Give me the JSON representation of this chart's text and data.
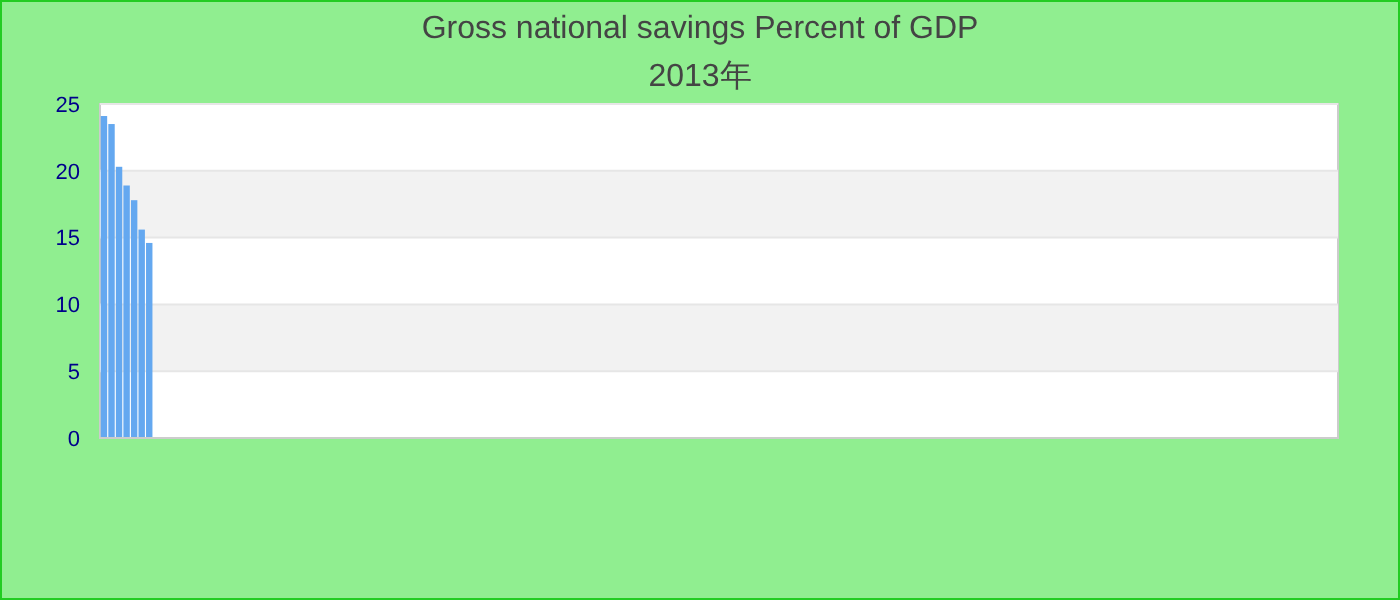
{
  "chart_data": {
    "type": "bar",
    "title": "Gross national savings  Percent of GDP",
    "subtitle": "2013年",
    "categories": [
      null,
      null,
      null,
      null,
      null,
      null,
      null,
      null,
      null,
      null,
      null,
      null,
      null,
      null,
      null,
      null,
      null,
      null,
      null,
      null,
      null,
      null,
      null,
      null,
      null,
      null,
      null,
      null,
      null,
      null,
      null,
      null,
      null,
      null,
      null,
      null,
      null,
      null,
      null,
      null,
      null,
      null,
      null,
      null,
      null,
      null,
      null,
      null,
      null,
      null,
      null,
      null,
      null,
      null,
      null,
      null,
      null,
      null,
      null,
      null,
      null,
      null,
      null,
      null,
      null,
      null,
      null,
      null,
      null,
      null,
      null,
      null,
      null,
      null,
      null,
      null,
      null,
      null,
      null,
      null,
      null,
      null,
      null,
      null,
      null,
      null,
      null,
      null,
      null,
      null,
      null,
      null,
      null,
      null,
      null,
      null,
      null,
      null,
      null,
      null,
      null,
      null,
      null,
      null,
      null,
      null,
      null,
      null,
      null,
      null,
      null,
      null,
      null,
      null,
      null,
      null,
      null,
      null,
      null,
      null,
      null,
      null,
      null,
      null,
      null,
      null,
      null,
      null,
      null,
      null,
      null,
      null,
      null,
      null,
      null,
      null,
      null,
      null,
      null,
      null,
      null,
      null,
      null,
      null,
      null,
      null,
      null,
      null,
      null,
      null,
      null,
      null,
      null,
      null,
      null,
      null,
      null,
      null,
      null,
      null,
      null,
      null,
      null,
      null
    ],
    "values": [
      24.1,
      23.5,
      20.3,
      18.9,
      17.8,
      15.6,
      14.6,
      null,
      null,
      null,
      null,
      null,
      null,
      null,
      null,
      null,
      null,
      null,
      null,
      null,
      null,
      null,
      null,
      null,
      null,
      null,
      null,
      null,
      null,
      null,
      null,
      null,
      null,
      null,
      null,
      null,
      null,
      null,
      null,
      null,
      null,
      null,
      null,
      null,
      null,
      null,
      null,
      null,
      null,
      null,
      null,
      null,
      null,
      null,
      null,
      null,
      null,
      null,
      null,
      null,
      null,
      null,
      null,
      null,
      null,
      null,
      null,
      null,
      null,
      null,
      null,
      null,
      null,
      null,
      null,
      null,
      null,
      null,
      null,
      null,
      null,
      null,
      null,
      null,
      null,
      null,
      null,
      null,
      null,
      null,
      null,
      null,
      null,
      null,
      null,
      null,
      null,
      null,
      null,
      null,
      null,
      null,
      null,
      null,
      null,
      null,
      null,
      null,
      null,
      null,
      null,
      null,
      null,
      null,
      null,
      null,
      null,
      null,
      null,
      null,
      null,
      null,
      null,
      null,
      null,
      null,
      null,
      null,
      null,
      null,
      null,
      null,
      null,
      null,
      null,
      null,
      null,
      null,
      null,
      null,
      null,
      null,
      null,
      null,
      null,
      null,
      null,
      null,
      null,
      null,
      null,
      null,
      null,
      null,
      null,
      null,
      null,
      null,
      null,
      null,
      null,
      null,
      null,
      null
    ],
    "color": "#64a8f0",
    "ylim": [
      0,
      25
    ],
    "yticks": [
      0,
      5,
      10,
      15,
      20,
      25
    ],
    "grid": "y"
  }
}
